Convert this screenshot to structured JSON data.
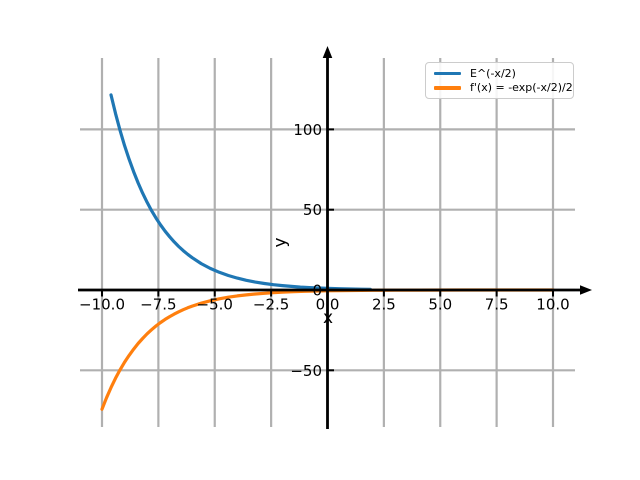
{
  "figure": {
    "background": "#ffffff"
  },
  "chart_data": {
    "type": "line",
    "title": "",
    "xlabel": "x",
    "ylabel": "y",
    "grid": true,
    "xlim": [
      -11.1,
      11.6
    ],
    "ylim": [
      -87,
      150
    ],
    "x_ticks": {
      "values": [
        -10,
        -7.5,
        -5,
        -2.5,
        0,
        2.5,
        5,
        7.5,
        10
      ],
      "labels": [
        "−10.0",
        "−7.5",
        "−5.0",
        "−2.5",
        "0.0",
        "2.5",
        "5.0",
        "7.5",
        "10.0"
      ]
    },
    "y_ticks": {
      "values": [
        100,
        50,
        0,
        -50
      ],
      "labels": [
        "100",
        "50",
        "0",
        "−50"
      ]
    },
    "colors": {
      "grid": "#b0b0b0",
      "axis": "#000000",
      "series_blue": "#1f77b4",
      "series_orange": "#ff7f0e",
      "legend_border": "#cccccc"
    },
    "legend": {
      "location": "upper right",
      "entries": [
        {
          "label": "E^(-x/2)",
          "color": "#1f77b4"
        },
        {
          "label": "f'(x) = -exp(-x/2)/2",
          "color": "#ff7f0e"
        }
      ]
    },
    "series": [
      {
        "name": "E^(-x/2)",
        "color": "#1f77b4",
        "points": [
          [
            -9.6,
            121.51
          ],
          [
            -9.4,
            109.95
          ],
          [
            -9.2,
            99.48
          ],
          [
            -9.0,
            90.02
          ],
          [
            -8.8,
            81.45
          ],
          [
            -8.6,
            73.7
          ],
          [
            -8.4,
            66.69
          ],
          [
            -8.2,
            60.34
          ],
          [
            -8.0,
            54.6
          ],
          [
            -7.8,
            49.4
          ],
          [
            -7.6,
            44.7
          ],
          [
            -7.4,
            40.45
          ],
          [
            -7.2,
            36.6
          ],
          [
            -7.0,
            33.12
          ],
          [
            -6.8,
            29.96
          ],
          [
            -6.6,
            27.11
          ],
          [
            -6.4,
            24.53
          ],
          [
            -6.2,
            22.2
          ],
          [
            -6.0,
            20.09
          ],
          [
            -5.6,
            16.44
          ],
          [
            -5.2,
            13.46
          ],
          [
            -4.8,
            11.02
          ],
          [
            -4.4,
            9.03
          ],
          [
            -4.0,
            7.39
          ],
          [
            -3.6,
            6.05
          ],
          [
            -3.2,
            4.95
          ],
          [
            -2.8,
            4.06
          ],
          [
            -2.4,
            3.32
          ],
          [
            -2.0,
            2.72
          ],
          [
            -1.6,
            2.23
          ],
          [
            -1.2,
            1.82
          ],
          [
            -0.8,
            1.49
          ],
          [
            -0.4,
            1.22
          ],
          [
            0,
            1.0
          ],
          [
            0.5,
            0.78
          ],
          [
            1.0,
            0.61
          ],
          [
            1.5,
            0.47
          ],
          [
            1.9,
            0.39
          ]
        ]
      },
      {
        "name": "f'(x) = -exp(-x/2)/2",
        "color": "#ff7f0e",
        "points": [
          [
            -10,
            -74.21
          ],
          [
            -9.8,
            -67.14
          ],
          [
            -9.6,
            -60.76
          ],
          [
            -9.4,
            -54.97
          ],
          [
            -9.2,
            -49.74
          ],
          [
            -9.0,
            -45.01
          ],
          [
            -8.8,
            -40.73
          ],
          [
            -8.6,
            -36.85
          ],
          [
            -8.4,
            -33.34
          ],
          [
            -8.2,
            -30.17
          ],
          [
            -8.0,
            -27.3
          ],
          [
            -7.8,
            -24.7
          ],
          [
            -7.6,
            -22.35
          ],
          [
            -7.4,
            -20.22
          ],
          [
            -7.2,
            -18.3
          ],
          [
            -7.0,
            -16.56
          ],
          [
            -6.8,
            -14.98
          ],
          [
            -6.6,
            -13.55
          ],
          [
            -6.4,
            -12.27
          ],
          [
            -6.2,
            -11.1
          ],
          [
            -6.0,
            -10.04
          ],
          [
            -5.6,
            -8.22
          ],
          [
            -5.2,
            -6.73
          ],
          [
            -4.8,
            -5.51
          ],
          [
            -4.4,
            -4.51
          ],
          [
            -4.0,
            -3.69
          ],
          [
            -3.6,
            -3.02
          ],
          [
            -3.2,
            -2.48
          ],
          [
            -2.8,
            -2.03
          ],
          [
            -2.4,
            -1.66
          ],
          [
            -2.0,
            -1.36
          ],
          [
            -1.5,
            -1.06
          ],
          [
            -1.0,
            -0.82
          ],
          [
            -0.5,
            -0.64
          ],
          [
            0,
            -0.5
          ],
          [
            1,
            -0.3
          ],
          [
            2,
            -0.18
          ],
          [
            3,
            -0.11
          ],
          [
            4,
            -0.07
          ],
          [
            6,
            -0.02
          ],
          [
            8,
            -0.01
          ],
          [
            10,
            -0.003
          ]
        ]
      }
    ]
  }
}
